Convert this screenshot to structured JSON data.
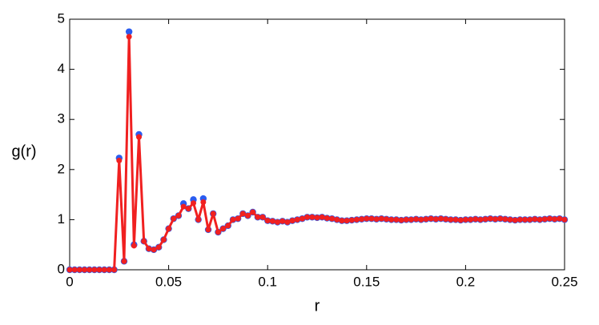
{
  "chart_data": {
    "type": "line",
    "x_label": "r",
    "y_label": "g(r)",
    "x": [
      0,
      0.0025,
      0.005,
      0.0075,
      0.01,
      0.0125,
      0.015,
      0.0175,
      0.02,
      0.0225,
      0.025,
      0.0275,
      0.03,
      0.0325,
      0.035,
      0.0375,
      0.04,
      0.0425,
      0.045,
      0.0475,
      0.05,
      0.0525,
      0.055,
      0.0575,
      0.06,
      0.0625,
      0.065,
      0.0675,
      0.07,
      0.0725,
      0.075,
      0.0775,
      0.08,
      0.0825,
      0.085,
      0.0875,
      0.09,
      0.0925,
      0.095,
      0.0975,
      0.1,
      0.1025,
      0.105,
      0.1075,
      0.11,
      0.1125,
      0.115,
      0.1175,
      0.12,
      0.1225,
      0.125,
      0.1275,
      0.13,
      0.1325,
      0.135,
      0.1375,
      0.14,
      0.1425,
      0.145,
      0.1475,
      0.15,
      0.1525,
      0.155,
      0.1575,
      0.16,
      0.1625,
      0.165,
      0.1675,
      0.17,
      0.1725,
      0.175,
      0.1775,
      0.18,
      0.1825,
      0.185,
      0.1875,
      0.19,
      0.1925,
      0.195,
      0.1975,
      0.2,
      0.2025,
      0.205,
      0.2075,
      0.21,
      0.2125,
      0.215,
      0.2175,
      0.22,
      0.2225,
      0.225,
      0.2275,
      0.23,
      0.2325,
      0.235,
      0.2375,
      0.24,
      0.2425,
      0.245,
      0.2475,
      0.25
    ],
    "series": [
      {
        "color": "#2a5cf0",
        "line": false,
        "values": [
          0,
          0,
          0,
          0,
          0,
          0,
          0,
          0,
          0,
          0,
          2.23,
          0.17,
          4.75,
          0.5,
          2.7,
          0.57,
          0.42,
          0.4,
          0.45,
          0.6,
          0.82,
          1.02,
          1.08,
          1.32,
          1.22,
          1.4,
          1.0,
          1.42,
          0.8,
          1.12,
          0.75,
          0.82,
          0.88,
          1.0,
          1.02,
          1.12,
          1.08,
          1.15,
          1.05,
          1.05,
          0.98,
          0.97,
          0.95,
          0.97,
          0.95,
          0.98,
          1.0,
          1.02,
          1.05,
          1.05,
          1.04,
          1.05,
          1.03,
          1.02,
          1.0,
          0.98,
          0.98,
          0.99,
          1.0,
          1.01,
          1.02,
          1.02,
          1.01,
          1.02,
          1.01,
          1.0,
          1.0,
          0.99,
          1.0,
          1.0,
          1.01,
          1.0,
          1.01,
          1.02,
          1.01,
          1.02,
          1.01,
          1.0,
          1.0,
          0.99,
          1.0,
          1.0,
          1.01,
          1.0,
          1.01,
          1.02,
          1.01,
          1.02,
          1.01,
          1.0,
          0.99,
          1.0,
          1.0,
          1.0,
          1.01,
          1.0,
          1.01,
          1.02,
          1.01,
          1.02,
          1.0
        ]
      },
      {
        "color": "#f02020",
        "line": true,
        "values": [
          0,
          0,
          0,
          0,
          0,
          0,
          0,
          0,
          0,
          0,
          2.18,
          0.17,
          4.65,
          0.48,
          2.65,
          0.57,
          0.42,
          0.4,
          0.45,
          0.6,
          0.82,
          1.02,
          1.08,
          1.26,
          1.22,
          1.33,
          1.0,
          1.35,
          0.8,
          1.12,
          0.75,
          0.82,
          0.88,
          1.0,
          1.02,
          1.12,
          1.08,
          1.15,
          1.05,
          1.05,
          0.98,
          0.97,
          0.95,
          0.97,
          0.95,
          0.98,
          1.0,
          1.02,
          1.05,
          1.05,
          1.04,
          1.05,
          1.03,
          1.02,
          1.0,
          0.98,
          0.98,
          0.99,
          1.0,
          1.01,
          1.02,
          1.02,
          1.01,
          1.02,
          1.01,
          1.0,
          1.0,
          0.99,
          1.0,
          1.0,
          1.01,
          1.0,
          1.01,
          1.02,
          1.01,
          1.02,
          1.01,
          1.0,
          1.0,
          0.99,
          1.0,
          1.0,
          1.01,
          1.0,
          1.01,
          1.02,
          1.01,
          1.02,
          1.01,
          1.0,
          0.99,
          1.0,
          1.0,
          1.0,
          1.01,
          1.0,
          1.01,
          1.02,
          1.01,
          1.02,
          1.0
        ]
      }
    ],
    "xlim": [
      0,
      0.25
    ],
    "xticks": [
      0,
      0.05,
      0.1,
      0.15,
      0.2,
      0.25
    ],
    "ylim": [
      0,
      5
    ],
    "yticks": [
      0,
      1,
      2,
      3,
      4,
      5
    ]
  }
}
